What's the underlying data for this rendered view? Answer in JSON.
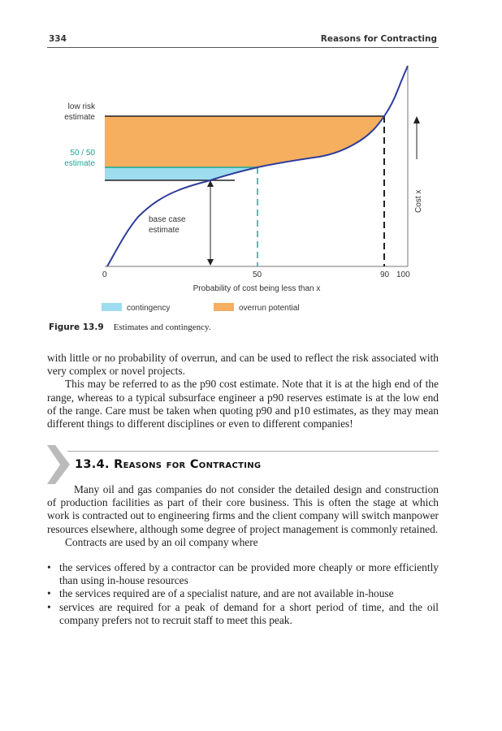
{
  "header": {
    "page_number": "334",
    "running_title": "Reasons for Contracting"
  },
  "figure": {
    "labels": {
      "low_risk": [
        "low risk",
        "estimate"
      ],
      "fifty": [
        "50 / 50",
        "estimate"
      ],
      "base": [
        "base case",
        "estimate"
      ],
      "cost_axis": "Cost x",
      "x_axis": "Probability of cost being less than x"
    },
    "ticks": [
      "0",
      "50",
      "90",
      "100"
    ],
    "legend": [
      {
        "label": "contingency",
        "color": "#9edcf0"
      },
      {
        "label": "overrun potential",
        "color": "#f6ae5f"
      }
    ],
    "colors": {
      "curve": "#2e3d9a",
      "teal": "#1aa88f"
    },
    "caption_num": "Figure 13.9",
    "caption_text": "Estimates and contingency."
  },
  "body": {
    "p1": "with little or no probability of overrun, and can be used to reflect the risk associated with very complex or novel projects.",
    "p2": "This may be referred to as the p90 cost estimate. Note that it is at the high end of the range, whereas to a typical subsurface engineer a p90 reserves estimate is at the low end of the range. Care must be taken when quoting p90 and p10 estimates, as they may mean different things to different disciplines or even to different companies!",
    "section_title": "13.4. Reasons for Contracting",
    "p3": "Many oil and gas companies do not consider the detailed design and construction of production facilities as part of their core business. This is often the stage at which work is contracted out to engineering firms and the client company will switch manpower resources elsewhere, although some degree of project management is commonly retained.",
    "p4": "Contracts are used by an oil company where",
    "bullets": [
      "the services offered by a contractor can be provided more cheaply or more efficiently than using in-house resources",
      "the services required are of a specialist nature, and are not available in-house",
      "services are required for a peak of demand for a short period of time, and the oil company prefers not to recruit staff to meet this peak."
    ]
  }
}
